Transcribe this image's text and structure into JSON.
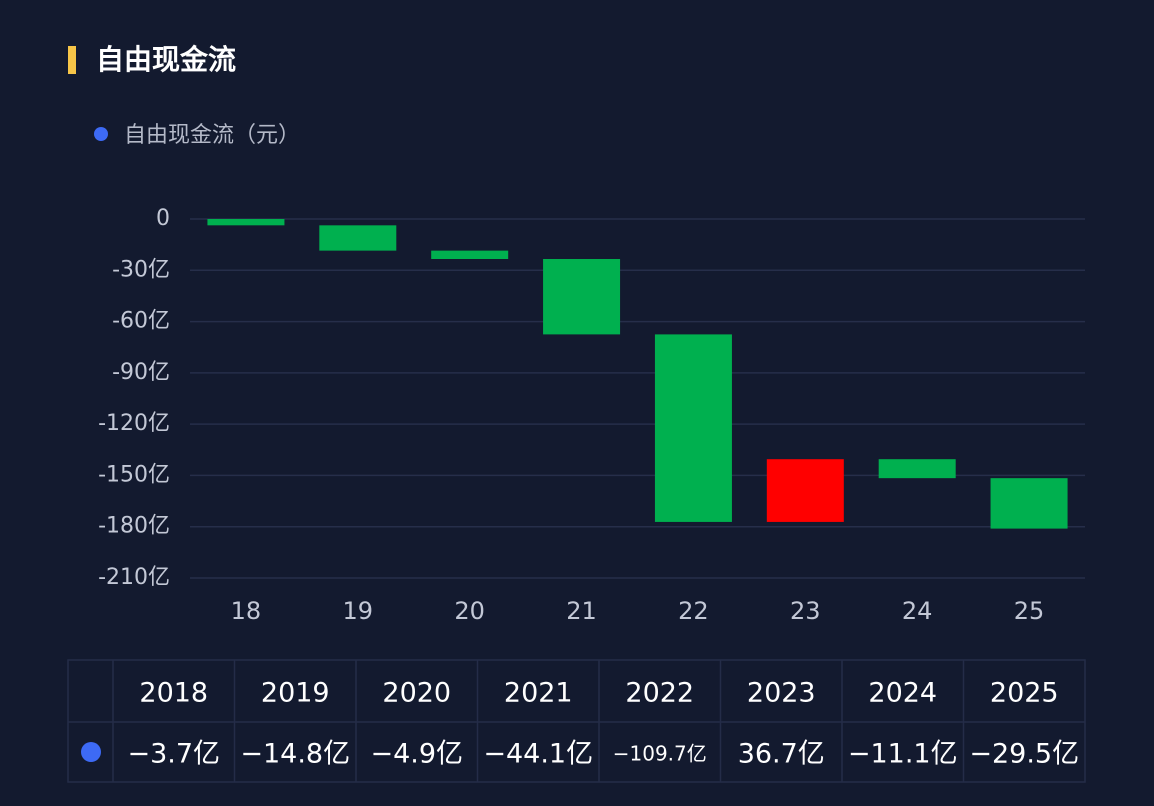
{
  "chart_data": {
    "type": "waterfall",
    "title": "自由现金流",
    "categories": [
      "18",
      "19",
      "20",
      "21",
      "22",
      "23",
      "24",
      "25"
    ],
    "series": [
      {
        "name": "自由现金流（元）",
        "color": "#3d6af5",
        "values": [
          -3.7,
          -14.8,
          -4.9,
          -44.1,
          -109.7,
          36.7,
          -11.1,
          -29.5
        ],
        "value_labels": [
          "−3.7亿",
          "−14.8亿",
          "−4.9亿",
          "−44.1亿",
          "−109.7亿",
          "36.7亿",
          "−11.1亿",
          "−29.5亿"
        ]
      }
    ],
    "negative_color": "#00b04f",
    "positive_color": "#ff0000",
    "ylim": [
      -210,
      0
    ],
    "yticks": [
      0,
      {
        "value": -30,
        "label": "-30亿"
      },
      {
        "value": -60,
        "label": "-60亿"
      },
      {
        "value": -90,
        "label": "-90亿"
      },
      {
        "value": -120,
        "label": "-120亿"
      },
      {
        "value": -150,
        "label": "-150亿"
      },
      {
        "value": -180,
        "label": "-180亿"
      },
      {
        "value": -210,
        "label": "-210亿"
      }
    ],
    "grid": true,
    "table_columns": [
      "2018",
      "2019",
      "2020",
      "2021",
      "2022",
      "2023",
      "2024",
      "2025"
    ]
  }
}
